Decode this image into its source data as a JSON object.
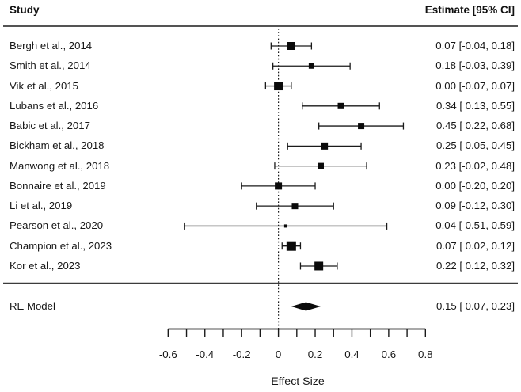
{
  "colors": {
    "foreground": "#1a1a1a",
    "rule": "#3c3c3c",
    "marker": "#0a0a0a",
    "background": "#ffffff"
  },
  "chart_data": {
    "type": "forest",
    "title": "",
    "xlabel": "Effect Size",
    "columns": {
      "left": "Study",
      "right": "Estimate [95% CI]"
    },
    "x_axis": {
      "min": -0.6,
      "max": 0.8,
      "minor_tick_step": 0.1,
      "label_step": 0.2,
      "tick_labels": [
        "-0.6",
        "-0.4",
        "-0.2",
        "0",
        "0.2",
        "0.4",
        "0.6",
        "0.8"
      ]
    },
    "zero_reference_line": 0,
    "studies": [
      {
        "label": "Bergh et al., 2014",
        "estimate": 0.07,
        "ci_lower": -0.04,
        "ci_upper": 0.18,
        "display": "0.07 [-0.04, 0.18]",
        "marker_size": 10
      },
      {
        "label": "Smith et al., 2014",
        "estimate": 0.18,
        "ci_lower": -0.03,
        "ci_upper": 0.39,
        "display": "0.18 [-0.03, 0.39]",
        "marker_size": 7
      },
      {
        "label": "Vik et al., 2015",
        "estimate": 0.0,
        "ci_lower": -0.07,
        "ci_upper": 0.07,
        "display": "0.00 [-0.07, 0.07]",
        "marker_size": 11
      },
      {
        "label": "Lubans et al., 2016",
        "estimate": 0.34,
        "ci_lower": 0.13,
        "ci_upper": 0.55,
        "display": "0.34 [ 0.13, 0.55]",
        "marker_size": 8
      },
      {
        "label": "Babic et al., 2017",
        "estimate": 0.45,
        "ci_lower": 0.22,
        "ci_upper": 0.68,
        "display": "0.45 [ 0.22, 0.68]",
        "marker_size": 8
      },
      {
        "label": "Bickham et al., 2018",
        "estimate": 0.25,
        "ci_lower": 0.05,
        "ci_upper": 0.45,
        "display": "0.25 [ 0.05, 0.45]",
        "marker_size": 9
      },
      {
        "label": "Manwong et al., 2018",
        "estimate": 0.23,
        "ci_lower": -0.02,
        "ci_upper": 0.48,
        "display": "0.23 [-0.02, 0.48]",
        "marker_size": 8
      },
      {
        "label": "Bonnaire et al., 2019",
        "estimate": 0.0,
        "ci_lower": -0.2,
        "ci_upper": 0.2,
        "display": "0.00 [-0.20, 0.20]",
        "marker_size": 9
      },
      {
        "label": "Li et al., 2019",
        "estimate": 0.09,
        "ci_lower": -0.12,
        "ci_upper": 0.3,
        "display": "0.09 [-0.12, 0.30]",
        "marker_size": 8
      },
      {
        "label": "Pearson et al., 2020",
        "estimate": 0.04,
        "ci_lower": -0.51,
        "ci_upper": 0.59,
        "display": "0.04 [-0.51, 0.59]",
        "marker_size": 4
      },
      {
        "label": "Champion et al., 2023",
        "estimate": 0.07,
        "ci_lower": 0.02,
        "ci_upper": 0.12,
        "display": "0.07 [ 0.02, 0.12]",
        "marker_size": 12
      },
      {
        "label": "Kor et al., 2023",
        "estimate": 0.22,
        "ci_lower": 0.12,
        "ci_upper": 0.32,
        "display": "0.22 [ 0.12, 0.32]",
        "marker_size": 11
      }
    ],
    "summary": {
      "label": "RE Model",
      "estimate": 0.15,
      "ci_lower": 0.07,
      "ci_upper": 0.23,
      "display": "0.15 [ 0.07, 0.23]"
    }
  }
}
